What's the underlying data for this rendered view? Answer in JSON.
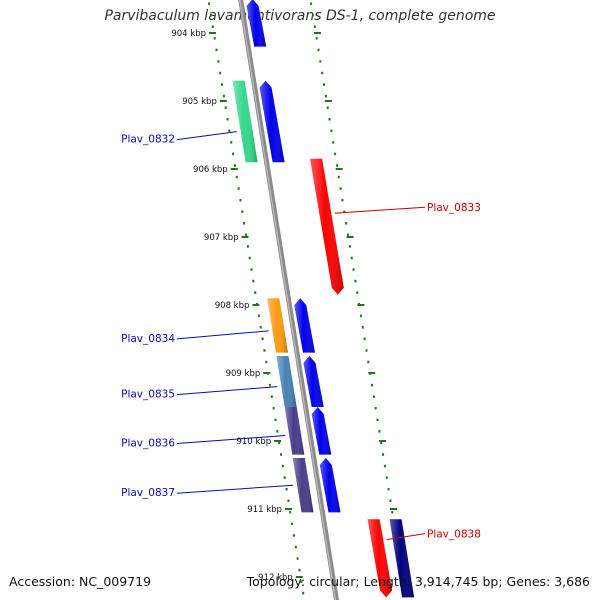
{
  "title": "Parvibaculum lavamentivorans DS-1, complete genome",
  "footer": {
    "accession": "Accession: NC_009719",
    "topology": "Topology: circular",
    "length": "Length: 3,914,745 bp",
    "genes": "Genes: 3,686"
  },
  "colors": {
    "backbone": "#8c8c8c",
    "tick": "#1a7a1a",
    "forward_label": "#0a0ab4",
    "reverse_label": "#cc0000",
    "forward_cds": "#0000ee",
    "reverse_cds": "#ff0000"
  },
  "kbp_ticks": [
    "904 kbp",
    "905 kbp",
    "906 kbp",
    "907 kbp",
    "908 kbp",
    "909 kbp",
    "910 kbp",
    "911 kbp",
    "912 kbp"
  ],
  "features": [
    {
      "name": "",
      "strand": "+",
      "track": "cds",
      "start_kbp": 903.5,
      "end_kbp": 904.2,
      "color": "#0000ee"
    },
    {
      "name": "",
      "strand": "+",
      "track": "cds",
      "start_kbp": 904.7,
      "end_kbp": 905.9,
      "color": "#0000ee"
    },
    {
      "name": "Plav_0832",
      "strand": "+",
      "track": "class",
      "start_kbp": 904.7,
      "end_kbp": 905.9,
      "color": "#33d98c",
      "label_kbp": 905.45
    },
    {
      "name": "Plav_0833",
      "strand": "-",
      "track": "cds",
      "start_kbp": 905.85,
      "end_kbp": 907.85,
      "color": "#ff0000",
      "label_kbp": 906.65
    },
    {
      "name": "",
      "strand": "+",
      "track": "cds",
      "start_kbp": 907.9,
      "end_kbp": 908.7,
      "color": "#0000ee"
    },
    {
      "name": "Plav_0834",
      "strand": "+",
      "track": "class",
      "start_kbp": 907.9,
      "end_kbp": 908.7,
      "color": "#ff9912",
      "label_kbp": 908.38
    },
    {
      "name": "",
      "strand": "+",
      "track": "cds",
      "start_kbp": 908.75,
      "end_kbp": 909.5,
      "color": "#0000ee"
    },
    {
      "name": "Plav_0835",
      "strand": "+",
      "track": "class",
      "start_kbp": 908.75,
      "end_kbp": 909.5,
      "color": "#4682b4",
      "label_kbp": 909.2
    },
    {
      "name": "",
      "strand": "+",
      "track": "cds",
      "start_kbp": 909.5,
      "end_kbp": 910.2,
      "color": "#0000ee"
    },
    {
      "name": "Plav_0836",
      "strand": "+",
      "track": "class",
      "start_kbp": 909.5,
      "end_kbp": 910.2,
      "color": "#483d8b",
      "label_kbp": 909.92
    },
    {
      "name": "",
      "strand": "+",
      "track": "cds",
      "start_kbp": 910.25,
      "end_kbp": 911.05,
      "color": "#0000ee"
    },
    {
      "name": "Plav_0837",
      "strand": "+",
      "track": "class",
      "start_kbp": 910.25,
      "end_kbp": 911.05,
      "color": "#483d8b",
      "label_kbp": 910.65
    },
    {
      "name": "Plav_0838",
      "strand": "-",
      "track": "cds",
      "start_kbp": 911.15,
      "end_kbp": 912.3,
      "color": "#ff0000",
      "label_kbp": 911.45
    },
    {
      "name": "",
      "strand": "-",
      "track": "class",
      "start_kbp": 911.15,
      "end_kbp": 912.3,
      "color": "#000080"
    }
  ]
}
